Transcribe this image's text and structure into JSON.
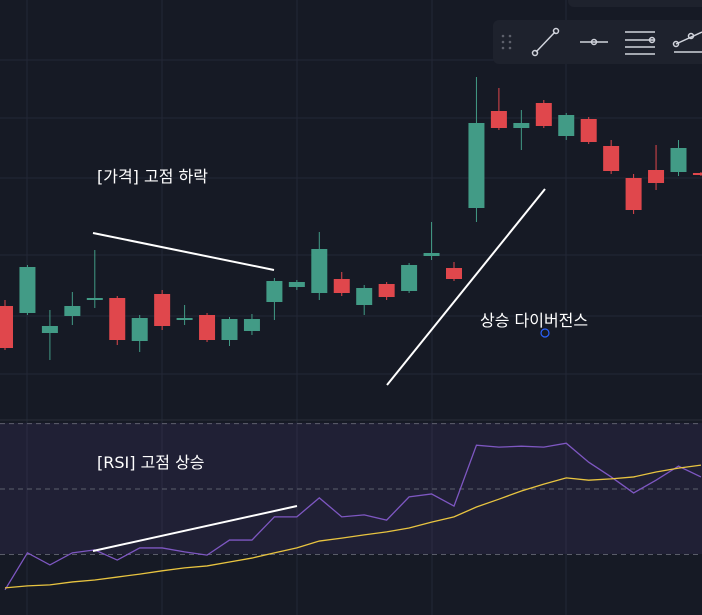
{
  "chart_data": [
    {
      "type": "candlestick",
      "up_color": "#429b86",
      "down_color": "#e0474c",
      "ylim": [
        0,
        420
      ],
      "open": [
        114,
        107,
        87,
        104,
        120,
        122,
        79,
        126,
        100,
        105,
        80,
        89,
        118,
        133,
        127,
        141,
        115,
        136,
        129,
        164,
        152,
        212,
        309,
        292,
        317,
        284,
        301,
        274,
        242,
        250,
        248,
        247
      ],
      "high": [
        120,
        155,
        110,
        128,
        170,
        124,
        105,
        130,
        115,
        107,
        103,
        106,
        142,
        140,
        188,
        148,
        135,
        138,
        157,
        198,
        158,
        343,
        332,
        310,
        320,
        307,
        303,
        280,
        246,
        275,
        280,
        248
      ],
      "low": [
        70,
        105,
        60,
        95,
        112,
        75,
        68,
        90,
        95,
        78,
        74,
        85,
        100,
        130,
        120,
        124,
        105,
        120,
        127,
        160,
        139,
        198,
        290,
        270,
        292,
        280,
        276,
        246,
        206,
        230,
        244,
        244
      ],
      "close": [
        72,
        153,
        94,
        114,
        122,
        80,
        102,
        94,
        102,
        80,
        101,
        101,
        139,
        138,
        171,
        127,
        132,
        123,
        155,
        167,
        141,
        297,
        292,
        297,
        294,
        305,
        278,
        249,
        210,
        237,
        272,
        245
      ],
      "annotations": [
        "[가격] 고점 하락",
        "상승 다이버전스"
      ]
    },
    {
      "type": "line",
      "ylim": [
        11.5,
        71.1
      ],
      "yticks": [
        70,
        50,
        30
      ],
      "grid": true,
      "series": [
        {
          "color": "#7e57c2",
          "values": [
            19.2,
            30.5,
            26.8,
            30.5,
            31.4,
            28.3,
            32.0,
            32.0,
            30.8,
            29.8,
            34.4,
            34.4,
            41.5,
            41.5,
            47.3,
            41.5,
            42.1,
            40.5,
            47.6,
            48.5,
            44.8,
            63.4,
            62.8,
            63.1,
            62.8,
            64.0,
            58.2,
            53.7,
            48.8,
            52.7,
            57.0,
            53.7
          ]
        },
        {
          "color": "#e8c440",
          "values": [
            19.8,
            20.4,
            20.7,
            21.6,
            22.2,
            23.1,
            24.0,
            25.0,
            25.9,
            26.5,
            27.7,
            28.9,
            30.5,
            32.0,
            34.1,
            35.0,
            36.0,
            36.9,
            38.1,
            39.9,
            41.5,
            44.5,
            46.9,
            49.4,
            51.5,
            53.4,
            52.7,
            53.1,
            53.7,
            55.2,
            56.4,
            57.3
          ]
        }
      ],
      "annotations": [
        "[RSI] 고점 상승"
      ]
    }
  ]
}
